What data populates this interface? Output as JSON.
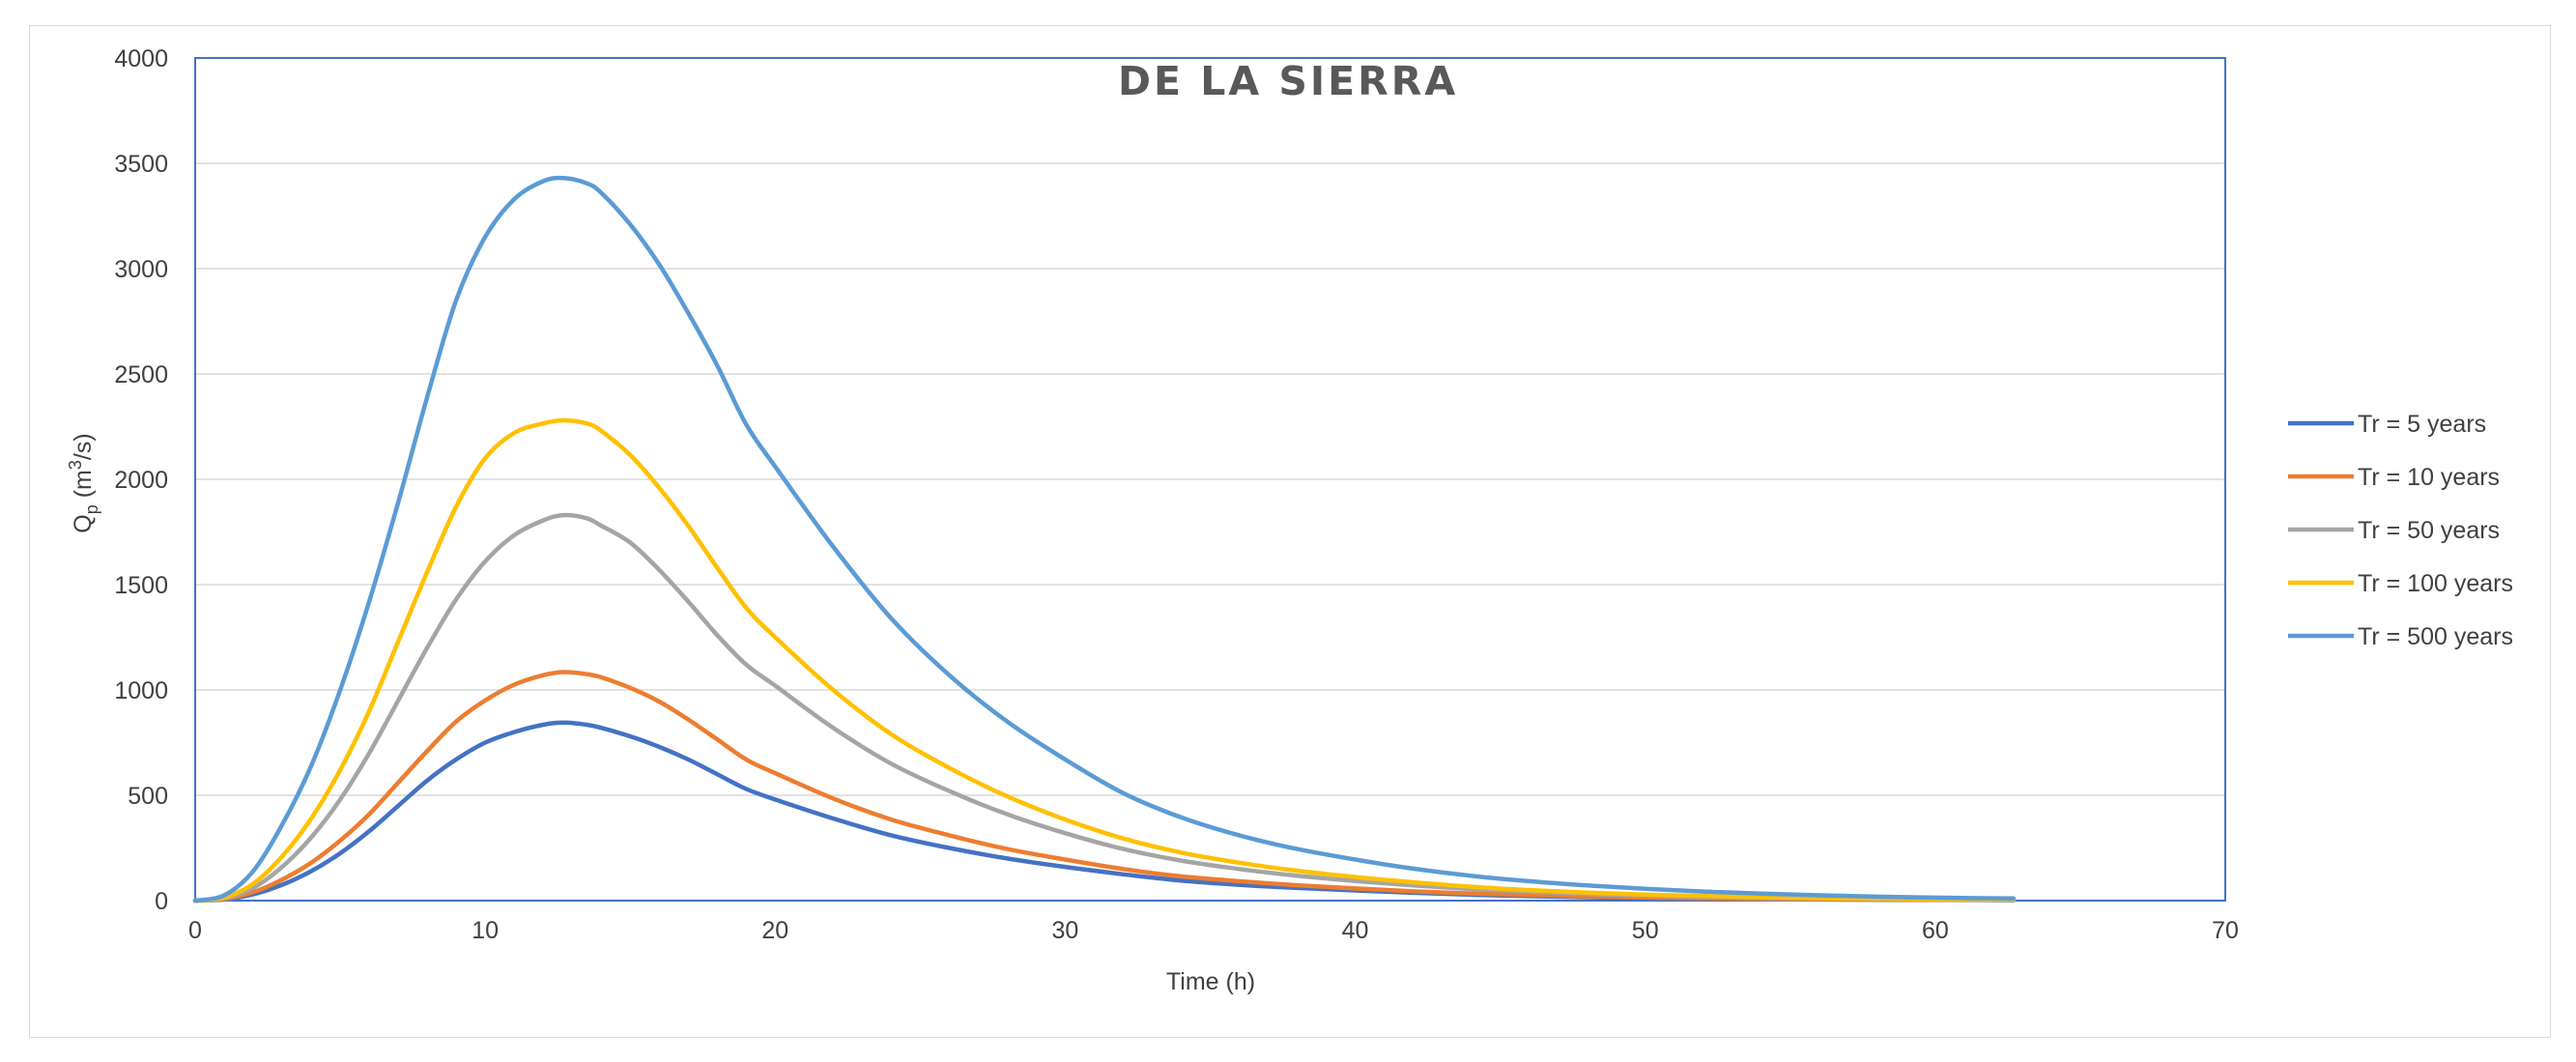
{
  "chart_data": {
    "type": "line",
    "title": "DE LA SIERRA",
    "xlabel": "Time (h)",
    "ylabel": "Q_p (m³/s)",
    "ylabel_main": "Q",
    "ylabel_sub": "p",
    "ylabel_rest": " (m",
    "ylabel_sup": "3",
    "ylabel_end": "/s)",
    "xlim": [
      0,
      70
    ],
    "ylim": [
      0,
      4000
    ],
    "xticks": [
      0,
      10,
      20,
      30,
      40,
      50,
      60,
      70
    ],
    "yticks": [
      0,
      500,
      1000,
      1500,
      2000,
      2500,
      3000,
      3500,
      4000
    ],
    "grid": "horizontal",
    "legend_position": "right",
    "x": [
      0,
      1,
      2,
      3,
      4,
      5,
      6,
      7,
      8,
      9,
      10,
      11,
      12,
      12.7,
      13.5,
      14,
      15,
      16,
      17,
      18,
      19,
      20,
      22,
      24,
      26,
      28,
      30,
      32,
      34,
      36,
      38,
      40,
      42,
      44,
      46,
      48,
      50,
      52,
      54,
      56,
      58,
      60,
      62.7
    ],
    "series": [
      {
        "name": "Tr = 5 years",
        "color": "#4472c4",
        "values": [
          0,
          5,
          30,
          75,
          140,
          225,
          330,
          450,
          570,
          670,
          750,
          800,
          835,
          845,
          835,
          820,
          780,
          730,
          670,
          600,
          530,
          480,
          390,
          310,
          250,
          200,
          160,
          125,
          95,
          75,
          60,
          48,
          37,
          28,
          21,
          16,
          12,
          9,
          7,
          5,
          4,
          3,
          2
        ]
      },
      {
        "name": "Tr = 10 years",
        "color": "#ed7d31",
        "values": [
          0,
          7,
          40,
          100,
          180,
          285,
          410,
          560,
          710,
          850,
          950,
          1025,
          1070,
          1085,
          1075,
          1060,
          1010,
          945,
          860,
          765,
          670,
          605,
          485,
          385,
          310,
          245,
          195,
          150,
          115,
          92,
          73,
          58,
          44,
          34,
          26,
          20,
          15,
          11,
          8,
          6,
          5,
          4,
          3
        ]
      },
      {
        "name": "Tr = 50 years",
        "color": "#a5a5a5",
        "values": [
          0,
          10,
          60,
          160,
          300,
          480,
          700,
          950,
          1200,
          1430,
          1610,
          1735,
          1805,
          1830,
          1815,
          1780,
          1700,
          1570,
          1420,
          1260,
          1120,
          1020,
          820,
          650,
          520,
          410,
          320,
          245,
          190,
          150,
          118,
          93,
          72,
          55,
          42,
          32,
          24,
          18,
          13,
          10,
          7,
          5,
          4
        ]
      },
      {
        "name": "Tr = 100 years",
        "color": "#ffc000",
        "values": [
          0,
          14,
          80,
          210,
          390,
          620,
          900,
          1230,
          1560,
          1870,
          2100,
          2220,
          2265,
          2280,
          2265,
          2230,
          2115,
          1960,
          1780,
          1580,
          1390,
          1250,
          1000,
          790,
          630,
          495,
          385,
          295,
          228,
          180,
          142,
          112,
          87,
          66,
          50,
          38,
          29,
          22,
          16,
          12,
          9,
          7,
          5
        ]
      },
      {
        "name": "Tr = 500 years",
        "color": "#5b9bd5",
        "values": [
          0,
          25,
          140,
          360,
          640,
          1000,
          1420,
          1890,
          2390,
          2850,
          3150,
          3330,
          3415,
          3430,
          3405,
          3360,
          3210,
          3020,
          2790,
          2540,
          2260,
          2060,
          1680,
          1340,
          1070,
          850,
          670,
          510,
          395,
          310,
          245,
          195,
          152,
          118,
          92,
          72,
          56,
          43,
          33,
          25,
          19,
          14,
          10
        ]
      }
    ]
  }
}
